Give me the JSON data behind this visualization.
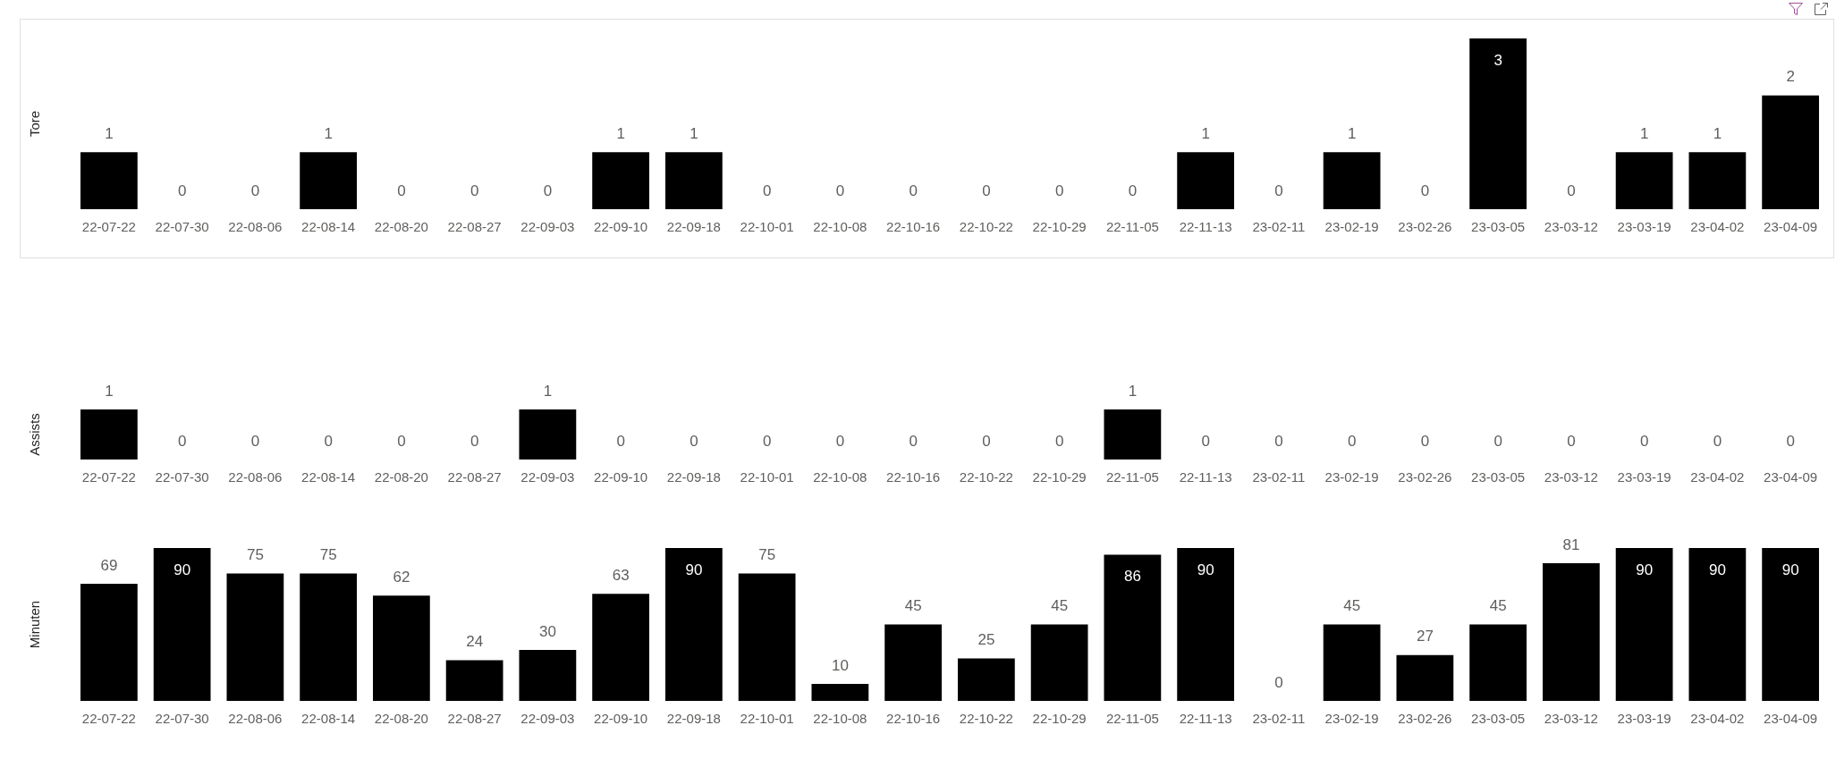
{
  "chart_data": [
    {
      "type": "bar",
      "ylabel": "Tore",
      "categories": [
        "22-07-22",
        "22-07-30",
        "22-08-06",
        "22-08-14",
        "22-08-20",
        "22-08-27",
        "22-09-03",
        "22-09-10",
        "22-09-18",
        "22-10-01",
        "22-10-08",
        "22-10-16",
        "22-10-22",
        "22-10-29",
        "22-11-05",
        "22-11-13",
        "23-02-11",
        "23-02-19",
        "23-02-26",
        "23-03-05",
        "23-03-12",
        "23-03-19",
        "23-04-02",
        "23-04-09"
      ],
      "values": [
        1,
        0,
        0,
        1,
        0,
        0,
        0,
        1,
        1,
        0,
        0,
        0,
        0,
        0,
        0,
        1,
        0,
        1,
        0,
        3,
        0,
        1,
        1,
        2
      ],
      "color": "#000000",
      "data_labels": true,
      "tick_labels": "x"
    },
    {
      "type": "bar",
      "ylabel": "Assists",
      "categories": [
        "22-07-22",
        "22-07-30",
        "22-08-06",
        "22-08-14",
        "22-08-20",
        "22-08-27",
        "22-09-03",
        "22-09-10",
        "22-09-18",
        "22-10-01",
        "22-10-08",
        "22-10-16",
        "22-10-22",
        "22-10-29",
        "22-11-05",
        "22-11-13",
        "23-02-11",
        "23-02-19",
        "23-02-26",
        "23-03-05",
        "23-03-12",
        "23-03-19",
        "23-04-02",
        "23-04-09"
      ],
      "values": [
        1,
        0,
        0,
        0,
        0,
        0,
        1,
        0,
        0,
        0,
        0,
        0,
        0,
        0,
        1,
        0,
        0,
        0,
        0,
        0,
        0,
        0,
        0,
        0
      ],
      "color": "#000000",
      "data_labels": true,
      "tick_labels": "x"
    },
    {
      "type": "bar",
      "ylabel": "Minuten",
      "categories": [
        "22-07-22",
        "22-07-30",
        "22-08-06",
        "22-08-14",
        "22-08-20",
        "22-08-27",
        "22-09-03",
        "22-09-10",
        "22-09-18",
        "22-10-01",
        "22-10-08",
        "22-10-16",
        "22-10-22",
        "22-10-29",
        "22-11-05",
        "22-11-13",
        "23-02-11",
        "23-02-19",
        "23-02-26",
        "23-03-05",
        "23-03-12",
        "23-03-19",
        "23-04-02",
        "23-04-09"
      ],
      "values": [
        69,
        90,
        75,
        75,
        62,
        24,
        30,
        63,
        90,
        75,
        10,
        45,
        25,
        45,
        86,
        90,
        0,
        45,
        27,
        45,
        81,
        90,
        90,
        90
      ],
      "color": "#000000",
      "data_labels": true,
      "tick_labels": "x"
    }
  ]
}
